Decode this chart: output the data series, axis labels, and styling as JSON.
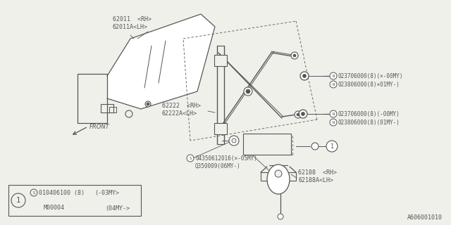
{
  "bg_color": "#f0f0eb",
  "line_color": "#555555",
  "part_number_bottom_right": "A606001010",
  "labels": {
    "glass": [
      "62011  <RH>",
      "62011A<LH>"
    ],
    "regulator": [
      "62222  <RH>",
      "62222A<LH>"
    ],
    "motor": [
      "62188  <RH>",
      "62188A<LH>"
    ],
    "bolt_upper": [
      "ⓝ023706000(8)(×-00MY)",
      "ⓝ023806000(8)×01MY-)"
    ],
    "bolt_lower": [
      "ⓝ023706000(8)(-00MY>",
      "ⓝ023806000(8)(01MY-)"
    ],
    "screw_line1": "Ⓞ04350612016(×-05MY)",
    "screw_line2": "Q350009(06MY-)",
    "front": "FRONT"
  },
  "table": {
    "col1_row1": "Ⓛ010406100 (8)",
    "col2_row1": "(-03MY>",
    "col1_row2": "M00004",
    "col2_row2": "(04MY->",
    "ref": "1"
  }
}
